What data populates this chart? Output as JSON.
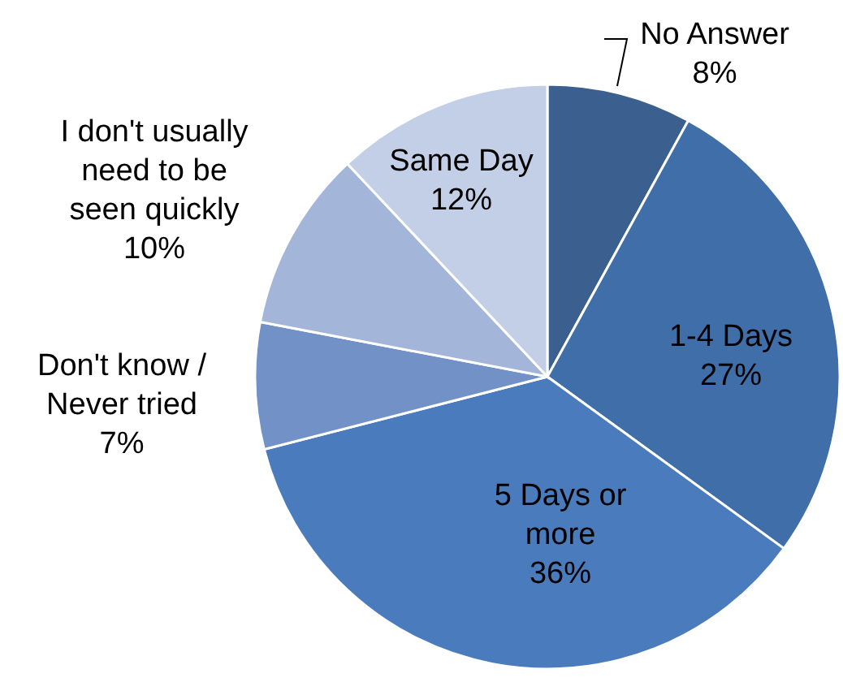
{
  "chart_data": {
    "type": "pie",
    "categories": [
      "No Answer",
      "1-4 Days",
      "5 Days or\nmore",
      "Don't know /\nNever tried",
      "I don't usually\nneed to be\nseen quickly",
      "Same Day"
    ],
    "values": [
      8,
      27,
      36,
      7,
      10,
      12
    ],
    "colors": [
      "#3b5f8e",
      "#3f6ea9",
      "#4a7cbd",
      "#7191c7",
      "#a3b5d8",
      "#c3cfe6"
    ],
    "value_labels": [
      "8%",
      "27%",
      "36%",
      "7%",
      "10%",
      "12%"
    ]
  }
}
